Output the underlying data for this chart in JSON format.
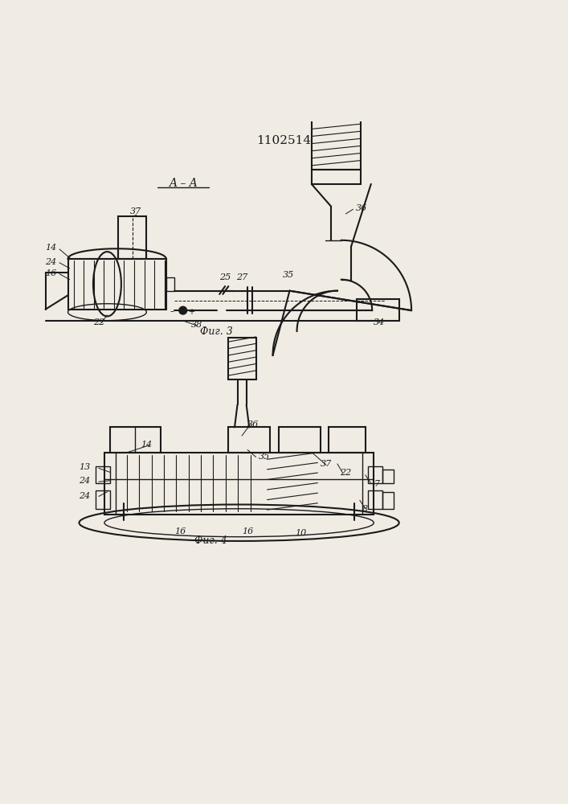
{
  "title": "1102514",
  "bg_color": "#f0ece4",
  "line_color": "#1a1a1a",
  "fig3_label": "Фиг. 3",
  "fig4_label": "Фиг. 4",
  "section_label": "A – A"
}
